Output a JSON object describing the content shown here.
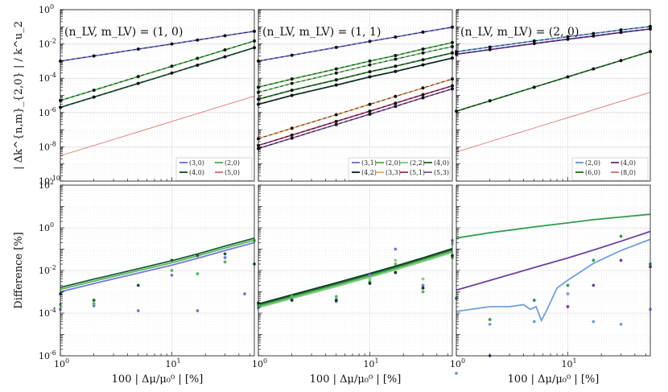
{
  "chart_data": {
    "type": "line",
    "x_scale": "log",
    "y_scale": "log",
    "xlabel": "100 | Δμ/μ₀⁰ | [%]",
    "ylabel_top": "| Δk^{n,m}_{2,0} | / k^u_2",
    "ylabel_bottom": "Difference [%]",
    "xlim": [
      1,
      55
    ],
    "ylim_top": [
      1e-10,
      1
    ],
    "ylim_bottom": [
      1e-06,
      100
    ],
    "x_tick_labels": [
      "10^0",
      "10^1"
    ],
    "y_tick_labels_top": [
      "10^0",
      "10^-2",
      "10^-4",
      "10^-6",
      "10^-8",
      "10^-10"
    ],
    "y_tick_labels_bottom": [
      "10^2",
      "10^0",
      "10^-2",
      "10^-4",
      "10^-6"
    ],
    "x_points": [
      1,
      2,
      5,
      10,
      17,
      30,
      55
    ],
    "panels": [
      {
        "title": "(n_LV, m_LV) = (1, 0)",
        "legend_columns": 2,
        "top_series": [
          {
            "name": "(3,0)",
            "color": "#7777dd",
            "values": [
              0.001,
              0.002,
              0.005,
              0.01,
              0.017,
              0.03,
              0.055
            ]
          },
          {
            "name": "(2,0)",
            "color": "#55bb55",
            "values": [
              5e-06,
              2e-05,
              0.000125,
              0.0005,
              0.00145,
              0.0045,
              0.015
            ]
          },
          {
            "name": "(4,0)",
            "color": "#1d5e3a",
            "values": [
              2e-06,
              8e-06,
              5e-05,
              0.0002,
              0.00058,
              0.0018,
              0.00605
            ]
          },
          {
            "name": "(5,0)",
            "color": "#dd7777",
            "values": [
              3e-09,
              1.2e-08,
              7.5e-08,
              3e-07,
              8.7e-07,
              2.7e-06,
              9.1e-06
            ]
          }
        ],
        "bottom_series": [
          {
            "name": "(3,0)",
            "color": "#7777dd",
            "values": [
              0.001,
              0.00245,
              0.0075,
              0.0178,
              0.037,
              0.0863,
              0.203
            ]
          },
          {
            "name": "(2,0)",
            "color": "#55bb55",
            "values": [
              0.0013,
              0.00318,
              0.00974,
              0.0231,
              0.048,
              0.112,
              0.263
            ]
          },
          {
            "name": "(4,0)",
            "color": "#1d5e3a",
            "values": [
              0.0016,
              0.0039,
              0.012,
              0.0285,
              0.0593,
              0.138,
              0.325
            ]
          }
        ],
        "bottom_points": [
          {
            "color": "#7777dd",
            "x": [
              1,
              2,
              5,
              10,
              17,
              30,
              45
            ],
            "y": [
              0.00015,
              0.00022,
              0.00013,
              0.006,
              0.00013,
              0.04,
              0.0008
            ]
          },
          {
            "color": "#55bb55",
            "x": [
              1,
              2,
              5,
              10,
              17,
              30,
              55
            ],
            "y": [
              0.00025,
              0.00028,
              0.002,
              0.01,
              0.007,
              0.025,
              0.25
            ]
          },
          {
            "color": "#1d5e3a",
            "x": [
              1,
              2,
              5,
              10,
              17,
              30,
              55
            ],
            "y": [
              0.0008,
              0.0004,
              0.002,
              0.03,
              0.05,
              0.06,
              0.02
            ]
          }
        ]
      },
      {
        "title": "(n_LV, m_LV) = (1, 1)",
        "legend_columns": 4,
        "top_series": [
          {
            "name": "(3,1)",
            "color": "#7777dd",
            "values": [
              0.001,
              0.0022,
              0.0063,
              0.0141,
              0.0254,
              0.0489,
              0.0949
            ]
          },
          {
            "name": "(2,0)",
            "color": "#55bb55",
            "values": [
              3e-05,
              9e-05,
              0.00035,
              0.001,
              0.0021,
              0.005,
              0.012
            ]
          },
          {
            "name": "(2,2)",
            "color": "#88cc88",
            "values": [
              1.5e-05,
              5e-05,
              0.0002,
              0.0006,
              0.0013,
              0.003,
              0.007
            ]
          },
          {
            "name": "(4,0)",
            "color": "#2e7d32",
            "values": [
              6e-06,
              2e-05,
              8e-05,
              0.00024,
              0.0005,
              0.0012,
              0.003
            ]
          },
          {
            "name": "(4,2)",
            "color": "#103c28",
            "values": [
              3e-06,
              1e-05,
              4e-05,
              0.00012,
              0.00025,
              0.0006,
              0.0015
            ]
          },
          {
            "name": "(3,3)",
            "color": "#f0b070",
            "values": [
              3e-08,
              1.2e-07,
              7.5e-07,
              3e-06,
              8.7e-06,
              2.7e-05,
              9.1e-05
            ]
          },
          {
            "name": "(5,1)",
            "color": "#b04070",
            "values": [
              1.2e-08,
              4.8e-08,
              3e-07,
              1.2e-06,
              3.5e-06,
              1.1e-05,
              3.6e-05
            ]
          },
          {
            "name": "(5,3)",
            "color": "#8866aa",
            "values": [
              8e-09,
              3.2e-08,
              2e-07,
              8e-07,
              2.3e-06,
              7.2e-06,
              2.4e-05
            ]
          }
        ],
        "bottom_series": [
          {
            "name": "(2,0)",
            "color": "#88cc88",
            "values": [
              0.00018,
              0.00048,
              0.00175,
              0.0048,
              0.0106,
              0.0261,
              0.0696
            ]
          },
          {
            "name": "(2,2)",
            "color": "#55bb55",
            "values": [
              0.00021,
              0.00056,
              0.00204,
              0.0056,
              0.0124,
              0.0305,
              0.0813
            ]
          },
          {
            "name": "(4,0)",
            "color": "#2e7d32",
            "values": [
              0.00024,
              0.00064,
              0.00234,
              0.0064,
              0.0142,
              0.0349,
              0.0929
            ]
          },
          {
            "name": "(4,2)",
            "color": "#103c28",
            "values": [
              0.00027,
              0.00072,
              0.00263,
              0.0072,
              0.016,
              0.0392,
              0.105
            ]
          }
        ],
        "bottom_points": [
          {
            "color": "#7777dd",
            "x": [
              1,
              2,
              5,
              10,
              17,
              30,
              55
            ],
            "y": [
              0.00018,
              0.00055,
              0.00035,
              0.006,
              0.1,
              0.002,
              0.25
            ]
          },
          {
            "color": "#88cc88",
            "x": [
              1,
              2,
              5,
              10,
              17,
              30,
              55
            ],
            "y": [
              0.00022,
              0.0006,
              0.00045,
              0.004,
              0.03,
              0.004,
              0.18
            ]
          },
          {
            "color": "#55bb55",
            "x": [
              1,
              2,
              5,
              10,
              17,
              30,
              55
            ],
            "y": [
              0.00025,
              0.0006,
              0.0006,
              0.003,
              0.02,
              0.001,
              0.04
            ]
          },
          {
            "color": "#103c28",
            "x": [
              1,
              2,
              5,
              10,
              17,
              30,
              55
            ],
            "y": [
              0.0003,
              0.0004,
              0.0004,
              0.0025,
              0.008,
              0.0015,
              0.05
            ]
          }
        ]
      },
      {
        "title": "(n_LV, m_LV) = (2, 0)",
        "legend_columns": 2,
        "top_series": [
          {
            "name": "(2,0)",
            "color": "#6ea0e0",
            "values": [
              0.0035,
              0.0066,
              0.0149,
              0.0264,
              0.0406,
              0.0657,
              0.1045
            ]
          },
          {
            "name": "(4,0)",
            "color": "#7040a0",
            "values": [
              0.0025,
              0.0047,
              0.0106,
              0.0189,
              0.029,
              0.0469,
              0.0747
            ]
          },
          {
            "name": "(6,0)",
            "color": "#2e7d32",
            "values": [
              1.2e-06,
              4.8e-06,
              3e-05,
              0.00012,
              0.00035,
              0.00108,
              0.00363
            ]
          },
          {
            "name": "(8,0)",
            "color": "#dd7777",
            "values": [
              5e-09,
              2e-08,
              1.25e-07,
              5e-07,
              1.45e-06,
              4.5e-06,
              1.5e-05
            ]
          }
        ],
        "bottom_series": [
          {
            "name": "(6,0)",
            "color": "#2e9e50",
            "values": [
              0.33,
              0.59,
              1.1,
              1.7,
              2.4,
              3.2,
              4.3
            ]
          },
          {
            "name": "(4,0)",
            "color": "#7040a0",
            "values": [
              0.0012,
              0.0034,
              0.0137,
              0.0385,
              0.0905,
              0.234,
              0.679
            ]
          },
          {
            "name": "(2,0)",
            "color": "#6ea0e0",
            "x": [
              1,
              2,
              3,
              4,
              4.6,
              5.2,
              5.8,
              6.4,
              8,
              10,
              17,
              30,
              55
            ],
            "values": [
              0.00012,
              0.0002,
              0.0002,
              0.00025,
              0.00015,
              0.0002,
              4.5e-05,
              0.00012,
              0.0015,
              0.0035,
              0.0215,
              0.0862,
              0.287
            ]
          }
        ],
        "bottom_points": [
          {
            "color": "#6ea0e0",
            "x": [
              1,
              2,
              5,
              10,
              17,
              30,
              55
            ],
            "y": [
              1.5e-07,
              3e-05,
              4e-05,
              0.0008,
              4e-05,
              3e-05,
              0.00015
            ]
          },
          {
            "color": "#7040a0",
            "x": [
              1,
              2,
              5,
              10,
              17,
              30,
              55
            ],
            "y": [
              0.0005,
              1e-06,
              0.0004,
              0.0002,
              0.002,
              0.03,
              0.015
            ]
          },
          {
            "color": "#2e9e50",
            "x": [
              1,
              2,
              5,
              10,
              17,
              30,
              55
            ],
            "y": [
              0.0005,
              5e-05,
              0.0004,
              0.002,
              0.03,
              0.4,
              0.02
            ]
          }
        ]
      }
    ]
  }
}
